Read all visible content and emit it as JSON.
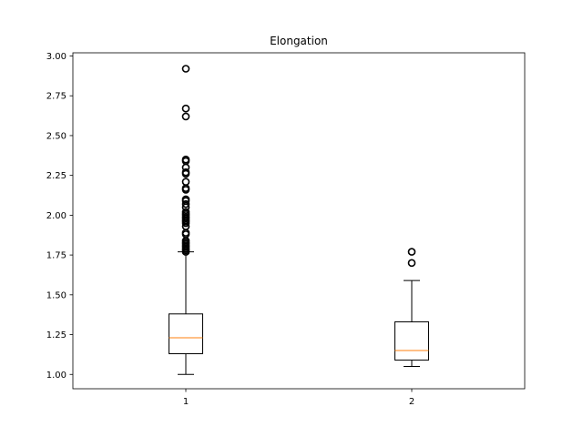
{
  "chart_data": {
    "type": "box",
    "title": "Elongation",
    "xlabel": "",
    "ylabel": "",
    "categories": [
      "1",
      "2"
    ],
    "ylim": [
      0.91,
      3.02
    ],
    "y_ticks": [
      1.0,
      1.25,
      1.5,
      1.75,
      2.0,
      2.25,
      2.5,
      2.75,
      3.0
    ],
    "y_tick_labels": [
      "1.00",
      "1.25",
      "1.50",
      "1.75",
      "2.00",
      "2.25",
      "2.50",
      "2.75",
      "3.00"
    ],
    "grid": false,
    "boxes": [
      {
        "label": "1",
        "whisker_low": 1.0,
        "q1": 1.13,
        "median": 1.23,
        "q3": 1.38,
        "whisker_high": 1.77,
        "outliers": [
          1.77,
          1.78,
          1.79,
          1.8,
          1.81,
          1.82,
          1.83,
          1.84,
          1.88,
          1.89,
          1.93,
          1.95,
          1.96,
          1.97,
          1.98,
          1.99,
          2.0,
          2.01,
          2.02,
          2.05,
          2.07,
          2.09,
          2.1,
          2.16,
          2.17,
          2.21,
          2.26,
          2.27,
          2.3,
          2.34,
          2.35,
          2.62,
          2.67,
          2.92
        ]
      },
      {
        "label": "2",
        "whisker_low": 1.05,
        "q1": 1.09,
        "median": 1.15,
        "q3": 1.33,
        "whisker_high": 1.59,
        "outliers": [
          1.7,
          1.77
        ]
      }
    ],
    "colors": {
      "box": "#000000",
      "median": "#ff7f0e",
      "outlier": "#000000"
    }
  }
}
